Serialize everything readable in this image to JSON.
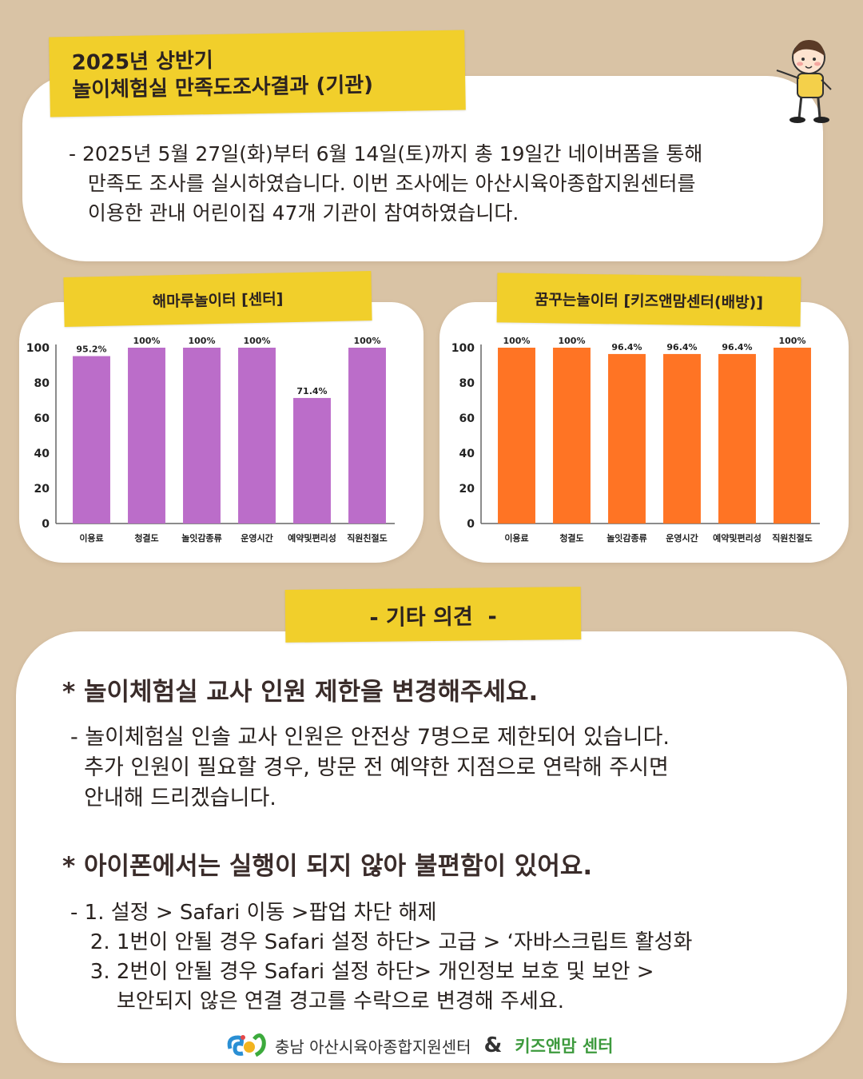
{
  "title": {
    "line1": "2025년 상반기",
    "line2": "놀이체험실 만족도조사결과 (기관)"
  },
  "intro": {
    "lines": [
      "- 2025년 5월 27일(화)부터 6월 14일(토)까지 총 19일간 네이버폼을 통해",
      "   만족도 조사를 실시하였습니다. 이번 조사에는 아산시육아종합지원센터를",
      "   이용한 관내 어린이집 47개 기관이 참여하였습니다."
    ]
  },
  "chart_data": [
    {
      "type": "bar",
      "title": "해마루놀이터 [센터]",
      "categories": [
        "이용료",
        "청결도",
        "놀잇감종류",
        "운영시간",
        "예약및편리성",
        "직원친절도"
      ],
      "values": [
        95.2,
        100,
        100,
        100,
        71.4,
        100
      ],
      "value_labels": [
        "95.2%",
        "100%",
        "100%",
        "100%",
        "71.4%",
        "100%"
      ],
      "yticks": [
        "100",
        "80",
        "60",
        "40",
        "20",
        "0"
      ],
      "ylim": [
        0,
        100
      ],
      "grid": false,
      "color": "#bb6dc9"
    },
    {
      "type": "bar",
      "title": "꿈꾸는놀이터 [키즈앤맘센터(배방)]",
      "categories": [
        "이용료",
        "청결도",
        "놀잇감종류",
        "운영시간",
        "예약및편리성",
        "직원친절도"
      ],
      "values": [
        100,
        100,
        96.4,
        96.4,
        96.4,
        100
      ],
      "value_labels": [
        "100%",
        "100%",
        "96.4%",
        "96.4%",
        "96.4%",
        "100%"
      ],
      "yticks": [
        "100",
        "80",
        "60",
        "40",
        "20",
        "0"
      ],
      "ylim": [
        0,
        100
      ],
      "grid": false,
      "color": "#ff7424"
    }
  ],
  "others": {
    "heading": "- 기타 의견  -",
    "items": [
      {
        "title": "* 놀이체험실 교사 인원 제한을 변경해주세요.",
        "body": "- 놀이체험실 인솔 교사 인원은 안전상 7명으로 제한되어 있습니다.\n  추가 인원이 필요할 경우, 방문 전 예약한 지점으로 연락해 주시면\n  안내해 드리겠습니다."
      },
      {
        "title": "* 아이폰에서는 실행이 되지 않아 불편함이 있어요.",
        "body": "- 1. 설정 > Safari 이동 >팝업 차단 해제\n   2. 1번이 안될 경우 Safari 설정 하단> 고급 > ‘자바스크립트 활성화\n   3. 2번이 안될 경우 Safari 설정 하단> 개인정보 보호 및 보안 >\n       보안되지 않은 연결 경고를 수락으로 변경해 주세요."
      }
    ]
  },
  "footer": {
    "org": "충남 아산시육아종합지원센터",
    "amp": "&",
    "kids": "키즈앤맘 센터"
  },
  "colors": {
    "background": "#d9c3a5",
    "tape": "#f1cf2b",
    "purple": "#bb6dc9",
    "orange": "#ff7424"
  }
}
